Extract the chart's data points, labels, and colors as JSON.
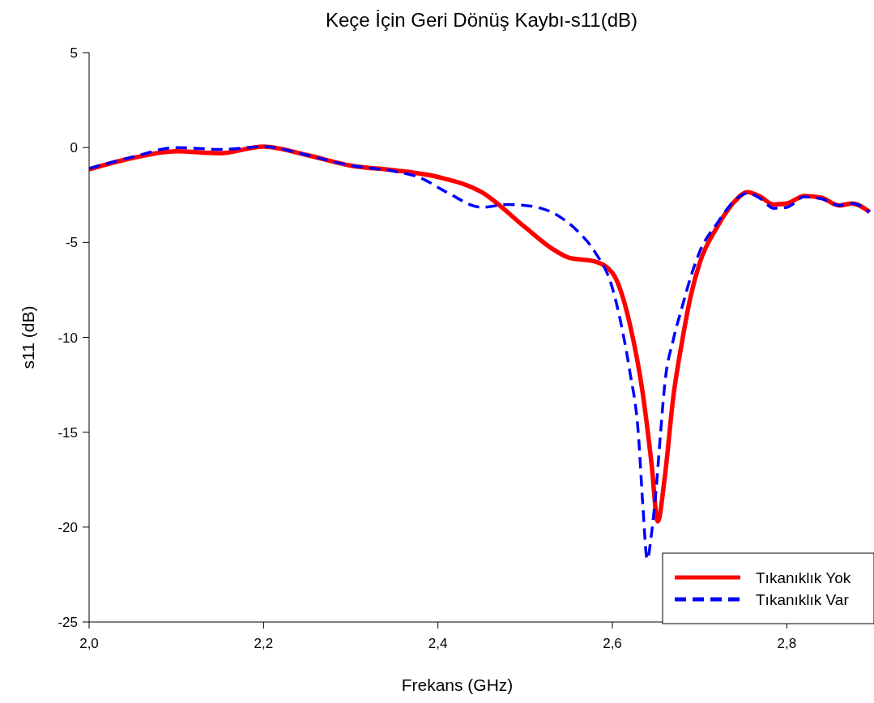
{
  "chart_data": {
    "type": "line",
    "title": "Keçe İçin Geri Dönüş Kaybı-s11(dB)",
    "xlabel": "Frekans (GHz)",
    "ylabel": "s11 (dB)",
    "xlim": [
      2.0,
      2.9
    ],
    "xticks": [
      {
        "value": 2.0,
        "label": "2,0"
      },
      {
        "value": 2.2,
        "label": "2,2"
      },
      {
        "value": 2.4,
        "label": "2,4"
      },
      {
        "value": 2.6,
        "label": "2,6"
      },
      {
        "value": 2.8,
        "label": "2,8"
      }
    ],
    "ylim": [
      -25,
      5
    ],
    "yticks": [
      -25,
      -20,
      -15,
      -10,
      -5,
      0,
      5
    ],
    "grid": false,
    "legend": "bottom right",
    "marker": "none",
    "series": [
      {
        "name": "Tıkanıklık Yok",
        "color": "#ff0000",
        "line_style": "solid",
        "x": [
          2.0,
          2.05,
          2.1,
          2.15,
          2.2,
          2.25,
          2.3,
          2.35,
          2.4,
          2.45,
          2.5,
          2.53,
          2.55,
          2.58,
          2.6,
          2.62,
          2.635,
          2.645,
          2.652,
          2.66,
          2.67,
          2.68,
          2.69,
          2.7,
          2.72,
          2.74,
          2.755,
          2.77,
          2.785,
          2.8,
          2.82,
          2.84,
          2.86,
          2.875,
          2.895
        ],
        "values": [
          -1.15,
          -0.55,
          -0.2,
          -0.3,
          0.05,
          -0.4,
          -0.95,
          -1.2,
          -1.55,
          -2.35,
          -4.2,
          -5.3,
          -5.8,
          -6.0,
          -6.6,
          -9.3,
          -13.0,
          -16.7,
          -19.7,
          -17.4,
          -13.1,
          -10.2,
          -7.8,
          -6.1,
          -4.2,
          -2.85,
          -2.35,
          -2.6,
          -3.0,
          -2.95,
          -2.55,
          -2.65,
          -3.05,
          -2.95,
          -3.4
        ]
      },
      {
        "name": "Tıkanıklık Var",
        "color": "#0000ff",
        "line_style": "dashed",
        "x": [
          2.0,
          2.05,
          2.1,
          2.15,
          2.2,
          2.25,
          2.3,
          2.35,
          2.38,
          2.41,
          2.45,
          2.48,
          2.5,
          2.53,
          2.56,
          2.58,
          2.6,
          2.61,
          2.62,
          2.63,
          2.635,
          2.64,
          2.645,
          2.65,
          2.655,
          2.66,
          2.67,
          2.68,
          2.69,
          2.7,
          2.72,
          2.74,
          2.755,
          2.77,
          2.785,
          2.8,
          2.82,
          2.84,
          2.86,
          2.875,
          2.895
        ],
        "values": [
          -1.1,
          -0.5,
          0.0,
          -0.1,
          0.05,
          -0.4,
          -0.95,
          -1.25,
          -1.6,
          -2.35,
          -3.15,
          -3.0,
          -3.05,
          -3.4,
          -4.4,
          -5.5,
          -7.4,
          -9.3,
          -11.8,
          -15.2,
          -18.9,
          -21.7,
          -20.3,
          -18.1,
          -15.2,
          -12.5,
          -10.1,
          -8.4,
          -6.8,
          -5.5,
          -4.0,
          -2.8,
          -2.4,
          -2.7,
          -3.2,
          -3.15,
          -2.6,
          -2.7,
          -3.05,
          -2.95,
          -3.4
        ]
      }
    ]
  }
}
